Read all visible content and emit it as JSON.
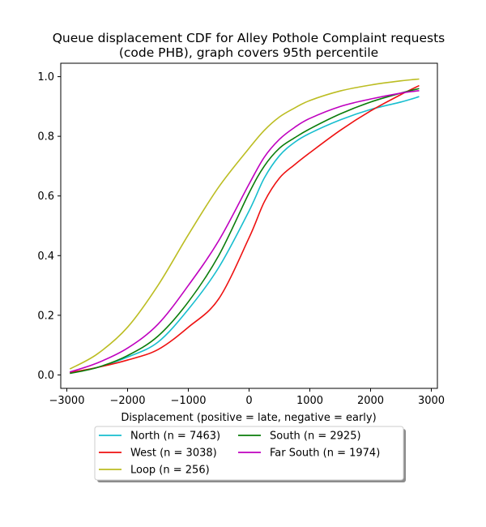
{
  "chart_data": {
    "type": "line",
    "title_lines": [
      "Queue displacement CDF for Alley Pothole Complaint  requests",
      "(code PHB), graph covers 95th percentile"
    ],
    "xlabel": "Displacement (positive = late, negative = early)",
    "ylabel": "",
    "xlim": [
      -3100,
      3100
    ],
    "ylim": [
      -0.045,
      1.045
    ],
    "xticks": [
      -3000,
      -2000,
      -1000,
      0,
      1000,
      2000,
      3000
    ],
    "yticks": [
      0.0,
      0.2,
      0.4,
      0.6,
      0.8,
      1.0
    ],
    "ytick_labels": [
      "0.0",
      "0.2",
      "0.4",
      "0.6",
      "0.8",
      "1.0"
    ],
    "grid": false,
    "legend_placement": "below-center",
    "series": [
      {
        "name": "North (n = 7463)",
        "color": "#17becf",
        "x": [
          -2950,
          -2500,
          -2000,
          -1500,
          -1000,
          -500,
          0,
          250,
          500,
          750,
          1000,
          1500,
          2000,
          2500,
          2800
        ],
        "y": [
          0.008,
          0.025,
          0.06,
          0.11,
          0.22,
          0.36,
          0.55,
          0.66,
          0.735,
          0.78,
          0.81,
          0.855,
          0.89,
          0.915,
          0.933
        ]
      },
      {
        "name": "West (n = 3038)",
        "color": "#ee1111",
        "x": [
          -2950,
          -2500,
          -2000,
          -1500,
          -1000,
          -500,
          0,
          250,
          500,
          750,
          1000,
          1500,
          2000,
          2500,
          2800
        ],
        "y": [
          0.008,
          0.025,
          0.05,
          0.085,
          0.16,
          0.255,
          0.46,
          0.58,
          0.66,
          0.705,
          0.745,
          0.82,
          0.885,
          0.94,
          0.97
        ]
      },
      {
        "name": "Loop (n = 256)",
        "color": "#bcbd22",
        "x": [
          -2950,
          -2500,
          -2000,
          -1500,
          -1000,
          -500,
          0,
          250,
          500,
          750,
          1000,
          1500,
          2000,
          2500,
          2800
        ],
        "y": [
          0.02,
          0.07,
          0.16,
          0.3,
          0.47,
          0.63,
          0.76,
          0.82,
          0.865,
          0.895,
          0.92,
          0.952,
          0.972,
          0.986,
          0.992
        ]
      },
      {
        "name": "South (n = 2925)",
        "color": "#0a7d0a",
        "x": [
          -2950,
          -2500,
          -2000,
          -1500,
          -1000,
          -500,
          0,
          250,
          500,
          750,
          1000,
          1500,
          2000,
          2500,
          2800
        ],
        "y": [
          0.005,
          0.025,
          0.065,
          0.13,
          0.245,
          0.4,
          0.61,
          0.7,
          0.76,
          0.795,
          0.825,
          0.875,
          0.915,
          0.945,
          0.96
        ]
      },
      {
        "name": "Far South (n = 1974)",
        "color": "#bf00bf",
        "x": [
          -2950,
          -2500,
          -2000,
          -1500,
          -1000,
          -500,
          0,
          250,
          500,
          750,
          1000,
          1500,
          2000,
          2500,
          2800
        ],
        "y": [
          0.01,
          0.04,
          0.09,
          0.17,
          0.3,
          0.45,
          0.64,
          0.73,
          0.79,
          0.83,
          0.86,
          0.9,
          0.925,
          0.945,
          0.953
        ]
      }
    ]
  }
}
